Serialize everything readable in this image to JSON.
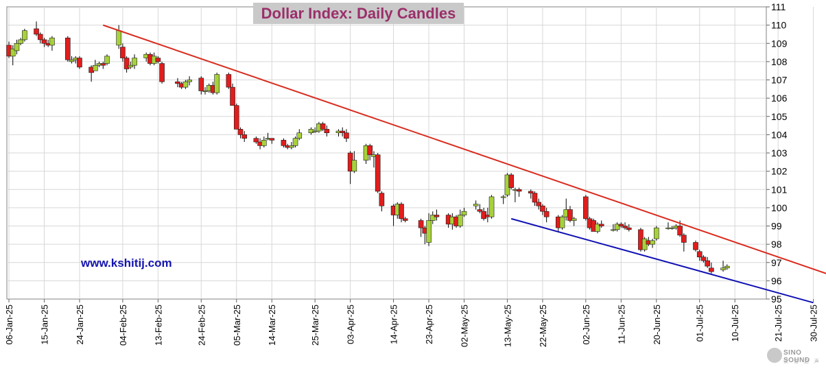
{
  "chart_data": {
    "type": "candlestick",
    "title": "Dollar Index: Daily Candles",
    "ylim": [
      95,
      111
    ],
    "yticks": [
      95,
      96,
      97,
      98,
      99,
      100,
      101,
      102,
      103,
      104,
      105,
      106,
      107,
      108,
      109,
      110,
      111
    ],
    "grid": true,
    "xticks": [
      {
        "label": "06-Jan-25",
        "day": 0
      },
      {
        "label": "15-Jan-25",
        "day": 9
      },
      {
        "label": "24-Jan-25",
        "day": 18
      },
      {
        "label": "04-Feb-25",
        "day": 29
      },
      {
        "label": "13-Feb-25",
        "day": 38
      },
      {
        "label": "24-Feb-25",
        "day": 49
      },
      {
        "label": "05-Mar-25",
        "day": 58
      },
      {
        "label": "14-Mar-25",
        "day": 67
      },
      {
        "label": "25-Mar-25",
        "day": 78
      },
      {
        "label": "03-Apr-25",
        "day": 87
      },
      {
        "label": "14-Apr-25",
        "day": 98
      },
      {
        "label": "23-Apr-25",
        "day": 107
      },
      {
        "label": "02-May-25",
        "day": 116
      },
      {
        "label": "13-May-25",
        "day": 127
      },
      {
        "label": "22-May-25",
        "day": 136
      },
      {
        "label": "02-Jun-25",
        "day": 147
      },
      {
        "label": "11-Jun-25",
        "day": 156
      },
      {
        "label": "20-Jun-25",
        "day": 165
      },
      {
        "label": "01-Jul-25",
        "day": 176
      },
      {
        "label": "10-Jul-25",
        "day": 185
      },
      {
        "label": "21-Jul-25",
        "day": 196
      },
      {
        "label": "30-Jul-25",
        "day": 205
      }
    ],
    "candles": [
      {
        "date": "06-Jan-25",
        "o": 108.9,
        "h": 109.1,
        "l": 108.2,
        "c": 108.3
      },
      {
        "date": "07-Jan-25",
        "o": 108.3,
        "h": 108.9,
        "l": 107.8,
        "c": 108.7
      },
      {
        "date": "08-Jan-25",
        "o": 108.6,
        "h": 109.2,
        "l": 108.4,
        "c": 109.0
      },
      {
        "date": "09-Jan-25",
        "o": 109.0,
        "h": 109.3,
        "l": 108.9,
        "c": 109.2
      },
      {
        "date": "10-Jan-25",
        "o": 109.2,
        "h": 109.8,
        "l": 109.1,
        "c": 109.7
      },
      {
        "date": "13-Jan-25",
        "o": 109.8,
        "h": 110.2,
        "l": 109.4,
        "c": 109.5
      },
      {
        "date": "14-Jan-25",
        "o": 109.5,
        "h": 109.6,
        "l": 109.0,
        "c": 109.2
      },
      {
        "date": "15-Jan-25",
        "o": 109.2,
        "h": 109.3,
        "l": 108.8,
        "c": 109.0
      },
      {
        "date": "16-Jan-25",
        "o": 109.0,
        "h": 109.2,
        "l": 108.8,
        "c": 108.9
      },
      {
        "date": "17-Jan-25",
        "o": 108.9,
        "h": 109.4,
        "l": 108.6,
        "c": 109.3
      },
      {
        "date": "21-Jan-25",
        "o": 109.3,
        "h": 109.4,
        "l": 108.0,
        "c": 108.1
      },
      {
        "date": "22-Jan-25",
        "o": 108.0,
        "h": 108.3,
        "l": 107.9,
        "c": 108.1
      },
      {
        "date": "23-Jan-25",
        "o": 108.1,
        "h": 108.3,
        "l": 107.9,
        "c": 108.2
      },
      {
        "date": "24-Jan-25",
        "o": 108.2,
        "h": 108.3,
        "l": 107.6,
        "c": 107.7
      },
      {
        "date": "27-Jan-25",
        "o": 107.7,
        "h": 107.8,
        "l": 106.9,
        "c": 107.4
      },
      {
        "date": "28-Jan-25",
        "o": 107.5,
        "h": 108.1,
        "l": 107.5,
        "c": 107.8
      },
      {
        "date": "29-Jan-25",
        "o": 107.8,
        "h": 108.0,
        "l": 107.7,
        "c": 107.9
      },
      {
        "date": "30-Jan-25",
        "o": 107.9,
        "h": 108.0,
        "l": 107.6,
        "c": 107.8
      },
      {
        "date": "31-Jan-25",
        "o": 107.9,
        "h": 108.4,
        "l": 107.8,
        "c": 108.3
      },
      {
        "date": "03-Feb-25",
        "o": 108.9,
        "h": 110.0,
        "l": 108.7,
        "c": 109.7
      },
      {
        "date": "04-Feb-25",
        "o": 108.8,
        "h": 109.0,
        "l": 108.0,
        "c": 108.2
      },
      {
        "date": "05-Feb-25",
        "o": 108.2,
        "h": 108.3,
        "l": 107.4,
        "c": 107.6
      },
      {
        "date": "06-Feb-25",
        "o": 107.7,
        "h": 108.0,
        "l": 107.6,
        "c": 107.8
      },
      {
        "date": "07-Feb-25",
        "o": 107.8,
        "h": 108.4,
        "l": 107.6,
        "c": 108.2
      },
      {
        "date": "10-Feb-25",
        "o": 108.2,
        "h": 108.5,
        "l": 108.0,
        "c": 108.4
      },
      {
        "date": "11-Feb-25",
        "o": 108.4,
        "h": 108.5,
        "l": 107.8,
        "c": 107.9
      },
      {
        "date": "12-Feb-25",
        "o": 107.9,
        "h": 108.5,
        "l": 107.8,
        "c": 108.3
      },
      {
        "date": "13-Feb-25",
        "o": 108.2,
        "h": 108.3,
        "l": 107.9,
        "c": 108.0
      },
      {
        "date": "14-Feb-25",
        "o": 107.9,
        "h": 108.0,
        "l": 106.8,
        "c": 106.9
      },
      {
        "date": "18-Feb-25",
        "o": 106.9,
        "h": 107.1,
        "l": 106.6,
        "c": 106.8
      },
      {
        "date": "19-Feb-25",
        "o": 106.8,
        "h": 106.9,
        "l": 106.5,
        "c": 106.6
      },
      {
        "date": "20-Feb-25",
        "o": 106.6,
        "h": 107.0,
        "l": 106.5,
        "c": 106.9
      },
      {
        "date": "21-Feb-25",
        "o": 106.9,
        "h": 107.2,
        "l": 106.7,
        "c": 107.0
      },
      {
        "date": "24-Feb-25",
        "o": 107.1,
        "h": 107.2,
        "l": 106.2,
        "c": 106.4
      },
      {
        "date": "25-Feb-25",
        "o": 106.4,
        "h": 106.6,
        "l": 106.2,
        "c": 106.4
      },
      {
        "date": "26-Feb-25",
        "o": 106.4,
        "h": 106.8,
        "l": 106.3,
        "c": 106.7
      },
      {
        "date": "27-Feb-25",
        "o": 106.7,
        "h": 106.9,
        "l": 106.2,
        "c": 106.3
      },
      {
        "date": "28-Feb-25",
        "o": 106.3,
        "h": 107.4,
        "l": 106.2,
        "c": 107.3
      },
      {
        "date": "03-Mar-25",
        "o": 107.3,
        "h": 107.4,
        "l": 106.5,
        "c": 106.6
      },
      {
        "date": "04-Mar-25",
        "o": 106.6,
        "h": 106.8,
        "l": 105.6,
        "c": 105.6
      },
      {
        "date": "05-Mar-25",
        "o": 105.6,
        "h": 105.7,
        "l": 104.3,
        "c": 104.3
      },
      {
        "date": "06-Mar-25",
        "o": 104.3,
        "h": 104.4,
        "l": 103.8,
        "c": 104.0
      },
      {
        "date": "07-Mar-25",
        "o": 104.0,
        "h": 104.2,
        "l": 103.6,
        "c": 103.8
      },
      {
        "date": "10-Mar-25",
        "o": 103.8,
        "h": 103.9,
        "l": 103.5,
        "c": 103.6
      },
      {
        "date": "11-Mar-25",
        "o": 103.6,
        "h": 103.8,
        "l": 103.2,
        "c": 103.4
      },
      {
        "date": "12-Mar-25",
        "o": 103.4,
        "h": 103.9,
        "l": 103.3,
        "c": 103.7
      },
      {
        "date": "13-Mar-25",
        "o": 103.8,
        "h": 104.1,
        "l": 103.7,
        "c": 103.8
      },
      {
        "date": "14-Mar-25",
        "o": 103.8,
        "h": 103.8,
        "l": 103.5,
        "c": 103.7
      },
      {
        "date": "17-Mar-25",
        "o": 103.7,
        "h": 103.8,
        "l": 103.3,
        "c": 103.4
      },
      {
        "date": "18-Mar-25",
        "o": 103.4,
        "h": 103.5,
        "l": 103.2,
        "c": 103.3
      },
      {
        "date": "19-Mar-25",
        "o": 103.3,
        "h": 103.6,
        "l": 103.2,
        "c": 103.4
      },
      {
        "date": "20-Mar-25",
        "o": 103.4,
        "h": 103.9,
        "l": 103.3,
        "c": 103.8
      },
      {
        "date": "21-Mar-25",
        "o": 103.8,
        "h": 104.3,
        "l": 103.7,
        "c": 104.1
      },
      {
        "date": "24-Mar-25",
        "o": 104.1,
        "h": 104.4,
        "l": 104.0,
        "c": 104.3
      },
      {
        "date": "25-Mar-25",
        "o": 104.2,
        "h": 104.4,
        "l": 104.1,
        "c": 104.2
      },
      {
        "date": "26-Mar-25",
        "o": 104.2,
        "h": 104.7,
        "l": 104.1,
        "c": 104.6
      },
      {
        "date": "27-Mar-25",
        "o": 104.6,
        "h": 104.7,
        "l": 104.2,
        "c": 104.3
      },
      {
        "date": "28-Mar-25",
        "o": 104.3,
        "h": 104.5,
        "l": 103.9,
        "c": 104.1
      },
      {
        "date": "31-Mar-25",
        "o": 104.1,
        "h": 104.3,
        "l": 103.9,
        "c": 104.2
      },
      {
        "date": "01-Apr-25",
        "o": 104.2,
        "h": 104.4,
        "l": 103.9,
        "c": 104.1
      },
      {
        "date": "02-Apr-25",
        "o": 104.1,
        "h": 104.3,
        "l": 103.6,
        "c": 103.8
      },
      {
        "date": "03-Apr-25",
        "o": 103.0,
        "h": 103.1,
        "l": 101.3,
        "c": 102.0
      },
      {
        "date": "04-Apr-25",
        "o": 102.0,
        "h": 103.1,
        "l": 101.9,
        "c": 102.6
      },
      {
        "date": "07-Apr-25",
        "o": 102.6,
        "h": 103.5,
        "l": 102.4,
        "c": 103.4
      },
      {
        "date": "08-Apr-25",
        "o": 103.4,
        "h": 103.5,
        "l": 102.6,
        "c": 102.9
      },
      {
        "date": "09-Apr-25",
        "o": 102.8,
        "h": 103.1,
        "l": 102.2,
        "c": 102.9
      },
      {
        "date": "10-Apr-25",
        "o": 102.9,
        "h": 103.0,
        "l": 100.8,
        "c": 100.9
      },
      {
        "date": "11-Apr-25",
        "o": 100.8,
        "h": 100.9,
        "l": 99.8,
        "c": 100.1
      },
      {
        "date": "14-Apr-25",
        "o": 100.1,
        "h": 100.2,
        "l": 99.0,
        "c": 99.6
      },
      {
        "date": "15-Apr-25",
        "o": 99.6,
        "h": 100.3,
        "l": 99.4,
        "c": 100.2
      },
      {
        "date": "16-Apr-25",
        "o": 100.2,
        "h": 100.3,
        "l": 99.2,
        "c": 99.4
      },
      {
        "date": "17-Apr-25",
        "o": 99.4,
        "h": 99.5,
        "l": 99.2,
        "c": 99.3
      },
      {
        "date": "21-Apr-25",
        "o": 99.3,
        "h": 99.4,
        "l": 98.4,
        "c": 98.9
      },
      {
        "date": "22-Apr-25",
        "o": 98.9,
        "h": 99.0,
        "l": 98.0,
        "c": 98.6
      },
      {
        "date": "23-Apr-25",
        "o": 98.1,
        "h": 99.7,
        "l": 97.9,
        "c": 99.3
      },
      {
        "date": "24-Apr-25",
        "o": 99.3,
        "h": 99.8,
        "l": 99.1,
        "c": 99.6
      },
      {
        "date": "25-Apr-25",
        "o": 99.6,
        "h": 99.9,
        "l": 99.3,
        "c": 99.5
      },
      {
        "date": "28-Apr-25",
        "o": 99.6,
        "h": 99.7,
        "l": 98.9,
        "c": 99.1
      },
      {
        "date": "29-Apr-25",
        "o": 99.1,
        "h": 99.7,
        "l": 98.8,
        "c": 99.5
      },
      {
        "date": "30-Apr-25",
        "o": 99.5,
        "h": 99.6,
        "l": 98.9,
        "c": 99.0
      },
      {
        "date": "01-May-25",
        "o": 99.0,
        "h": 99.9,
        "l": 98.9,
        "c": 99.6
      },
      {
        "date": "02-May-25",
        "o": 99.6,
        "h": 100.0,
        "l": 99.5,
        "c": 99.8
      },
      {
        "date": "05-May-25",
        "o": 100.1,
        "h": 100.4,
        "l": 99.9,
        "c": 100.2
      },
      {
        "date": "06-May-25",
        "o": 99.9,
        "h": 100.2,
        "l": 99.7,
        "c": 99.8
      },
      {
        "date": "07-May-25",
        "o": 99.8,
        "h": 100.0,
        "l": 99.3,
        "c": 99.4
      },
      {
        "date": "08-May-25",
        "o": 99.6,
        "h": 100.0,
        "l": 99.2,
        "c": 99.5
      },
      {
        "date": "09-May-25",
        "o": 99.5,
        "h": 100.7,
        "l": 99.4,
        "c": 100.6
      },
      {
        "date": "12-May-25",
        "o": 100.6,
        "h": 100.7,
        "l": 100.2,
        "c": 100.6
      },
      {
        "date": "13-May-25",
        "o": 100.7,
        "h": 101.9,
        "l": 100.6,
        "c": 101.8
      },
      {
        "date": "14-May-25",
        "o": 101.8,
        "h": 101.9,
        "l": 101.0,
        "c": 101.1
      },
      {
        "date": "15-May-25",
        "o": 101.0,
        "h": 101.1,
        "l": 100.3,
        "c": 101.0
      },
      {
        "date": "16-May-25",
        "o": 101.0,
        "h": 101.1,
        "l": 100.6,
        "c": 100.9
      },
      {
        "date": "19-May-25",
        "o": 100.9,
        "h": 101.0,
        "l": 100.5,
        "c": 100.8
      },
      {
        "date": "20-May-25",
        "o": 100.8,
        "h": 100.9,
        "l": 100.1,
        "c": 100.3
      },
      {
        "date": "21-May-25",
        "o": 100.3,
        "h": 100.5,
        "l": 99.9,
        "c": 100.1
      },
      {
        "date": "22-May-25",
        "o": 100.1,
        "h": 100.2,
        "l": 99.6,
        "c": 99.8
      },
      {
        "date": "23-May-25",
        "o": 99.8,
        "h": 100.0,
        "l": 99.2,
        "c": 99.5
      },
      {
        "date": "26-May-25",
        "o": 99.5,
        "h": 99.6,
        "l": 98.7,
        "c": 98.9
      },
      {
        "date": "27-May-25",
        "o": 98.9,
        "h": 99.6,
        "l": 98.8,
        "c": 99.5
      },
      {
        "date": "28-May-25",
        "o": 99.5,
        "h": 100.5,
        "l": 99.3,
        "c": 99.9
      },
      {
        "date": "29-May-25",
        "o": 99.9,
        "h": 100.1,
        "l": 99.2,
        "c": 99.3
      },
      {
        "date": "30-May-25",
        "o": 99.3,
        "h": 99.5,
        "l": 99.0,
        "c": 99.4
      },
      {
        "date": "02-Jun-25",
        "o": 100.6,
        "h": 100.7,
        "l": 99.3,
        "c": 99.4
      },
      {
        "date": "03-Jun-25",
        "o": 99.4,
        "h": 99.5,
        "l": 98.8,
        "c": 98.9
      },
      {
        "date": "04-Jun-25",
        "o": 99.3,
        "h": 99.4,
        "l": 98.7,
        "c": 98.7
      },
      {
        "date": "05-Jun-25",
        "o": 98.7,
        "h": 99.2,
        "l": 98.6,
        "c": 99.1
      },
      {
        "date": "06-Jun-25",
        "o": 99.1,
        "h": 99.3,
        "l": 98.9,
        "c": 99.0
      },
      {
        "date": "09-Jun-25",
        "o": 98.8,
        "h": 99.1,
        "l": 98.7,
        "c": 98.8
      },
      {
        "date": "10-Jun-25",
        "o": 98.8,
        "h": 99.2,
        "l": 98.7,
        "c": 99.1
      },
      {
        "date": "11-Jun-25",
        "o": 99.1,
        "h": 99.2,
        "l": 98.9,
        "c": 99.0
      },
      {
        "date": "12-Jun-25",
        "o": 99.0,
        "h": 99.2,
        "l": 98.8,
        "c": 98.9
      },
      {
        "date": "13-Jun-25",
        "o": 98.9,
        "h": 99.1,
        "l": 98.7,
        "c": 98.8
      },
      {
        "date": "16-Jun-25",
        "o": 98.8,
        "h": 98.9,
        "l": 97.6,
        "c": 97.7
      },
      {
        "date": "17-Jun-25",
        "o": 97.7,
        "h": 98.4,
        "l": 97.6,
        "c": 98.3
      },
      {
        "date": "18-Jun-25",
        "o": 98.2,
        "h": 98.4,
        "l": 97.9,
        "c": 98.0
      },
      {
        "date": "19-Jun-25",
        "o": 98.0,
        "h": 98.3,
        "l": 97.8,
        "c": 98.2
      },
      {
        "date": "20-Jun-25",
        "o": 98.3,
        "h": 99.0,
        "l": 98.2,
        "c": 98.9
      },
      {
        "date": "23-Jun-25",
        "o": 98.9,
        "h": 99.2,
        "l": 98.8,
        "c": 98.9
      },
      {
        "date": "24-Jun-25",
        "o": 98.9,
        "h": 99.0,
        "l": 98.8,
        "c": 98.9
      },
      {
        "date": "25-Jun-25",
        "o": 98.9,
        "h": 99.1,
        "l": 98.8,
        "c": 99.0
      },
      {
        "date": "26-Jun-25",
        "o": 99.0,
        "h": 99.3,
        "l": 98.4,
        "c": 98.5
      },
      {
        "date": "27-Jun-25",
        "o": 98.5,
        "h": 98.6,
        "l": 97.6,
        "c": 98.1
      },
      {
        "date": "30-Jun-25",
        "o": 98.1,
        "h": 98.2,
        "l": 97.6,
        "c": 97.7
      },
      {
        "date": "01-Jul-25",
        "o": 97.6,
        "h": 97.7,
        "l": 97.1,
        "c": 97.3
      },
      {
        "date": "02-Jul-25",
        "o": 97.3,
        "h": 97.4,
        "l": 97.0,
        "c": 97.1
      },
      {
        "date": "03-Jul-25",
        "o": 97.1,
        "h": 97.3,
        "l": 96.7,
        "c": 96.8
      },
      {
        "date": "04-Jul-25",
        "o": 96.7,
        "h": 97.0,
        "l": 96.4,
        "c": 96.5
      },
      {
        "date": "07-Jul-25",
        "o": 96.6,
        "h": 97.1,
        "l": 96.5,
        "c": 96.7
      },
      {
        "date": "08-Jul-25",
        "o": 96.7,
        "h": 96.9,
        "l": 96.6,
        "c": 96.8
      }
    ],
    "trendlines": [
      {
        "color": "#d92b1e",
        "from": {
          "date": "30-Jan-25",
          "y": 110.0
        },
        "to": {
          "date": "07-Aug-25",
          "y": 96.05
        }
      },
      {
        "color": "#1010b4",
        "from": {
          "date": "14-May-25",
          "y": 99.4
        },
        "to": {
          "date": "30-Jul-25",
          "y": 94.8
        }
      }
    ],
    "annotations": [
      "www.kshitij.com"
    ]
  },
  "colors": {
    "title_text": "#9a2f6a",
    "title_bg": "#c9c9c9",
    "url_text": "#1515b0",
    "up_candle": "#a7d13a",
    "down_candle": "#e11d1d",
    "grid": "#d7d7d7",
    "trend_red": "#d92b1e",
    "trend_blue": "#1010b4"
  },
  "watermark": {
    "text": "SINO SOUND",
    "subtext": "汉 语 之 声"
  }
}
